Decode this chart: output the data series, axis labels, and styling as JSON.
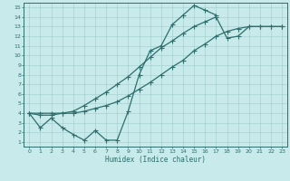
{
  "xlabel": "Humidex (Indice chaleur)",
  "xlim": [
    -0.5,
    23.5
  ],
  "ylim": [
    0.5,
    15.5
  ],
  "xticks": [
    0,
    1,
    2,
    3,
    4,
    5,
    6,
    7,
    8,
    9,
    10,
    11,
    12,
    13,
    14,
    15,
    16,
    17,
    18,
    19,
    20,
    21,
    22,
    23
  ],
  "yticks": [
    1,
    2,
    3,
    4,
    5,
    6,
    7,
    8,
    9,
    10,
    11,
    12,
    13,
    14,
    15
  ],
  "bg_color": "#c8eaea",
  "line_color": "#2d6e6e",
  "grid_color": "#a0cccc",
  "line1_x": [
    0,
    1,
    2,
    3,
    4,
    5,
    6,
    7,
    8,
    9,
    10,
    11,
    12,
    13,
    14,
    15,
    16,
    17
  ],
  "line1_y": [
    4.0,
    2.5,
    3.5,
    2.5,
    1.8,
    1.2,
    2.2,
    1.2,
    1.2,
    4.2,
    8.0,
    10.5,
    11.0,
    13.2,
    14.2,
    15.2,
    14.7,
    14.2
  ],
  "line2_x": [
    0,
    1,
    2,
    3,
    4,
    5,
    6,
    7,
    8,
    9,
    10,
    11,
    12,
    13,
    14,
    15,
    16,
    17,
    18,
    19,
    20,
    21,
    22,
    23
  ],
  "line2_y": [
    4.0,
    3.8,
    3.8,
    4.0,
    4.2,
    4.8,
    5.5,
    6.2,
    7.0,
    7.8,
    8.8,
    9.8,
    10.8,
    11.5,
    12.3,
    13.0,
    13.5,
    14.0,
    11.8,
    12.0,
    13.0,
    13.0,
    13.0,
    13.0
  ],
  "line3_x": [
    0,
    1,
    2,
    3,
    4,
    5,
    6,
    7,
    8,
    9,
    10,
    11,
    12,
    13,
    14,
    15,
    16,
    17,
    18,
    19,
    20,
    21,
    22,
    23
  ],
  "line3_y": [
    4.0,
    4.0,
    4.0,
    4.0,
    4.0,
    4.2,
    4.5,
    4.8,
    5.2,
    5.8,
    6.5,
    7.2,
    8.0,
    8.8,
    9.5,
    10.5,
    11.2,
    12.0,
    12.5,
    12.8,
    13.0,
    13.0,
    13.0,
    13.0
  ]
}
